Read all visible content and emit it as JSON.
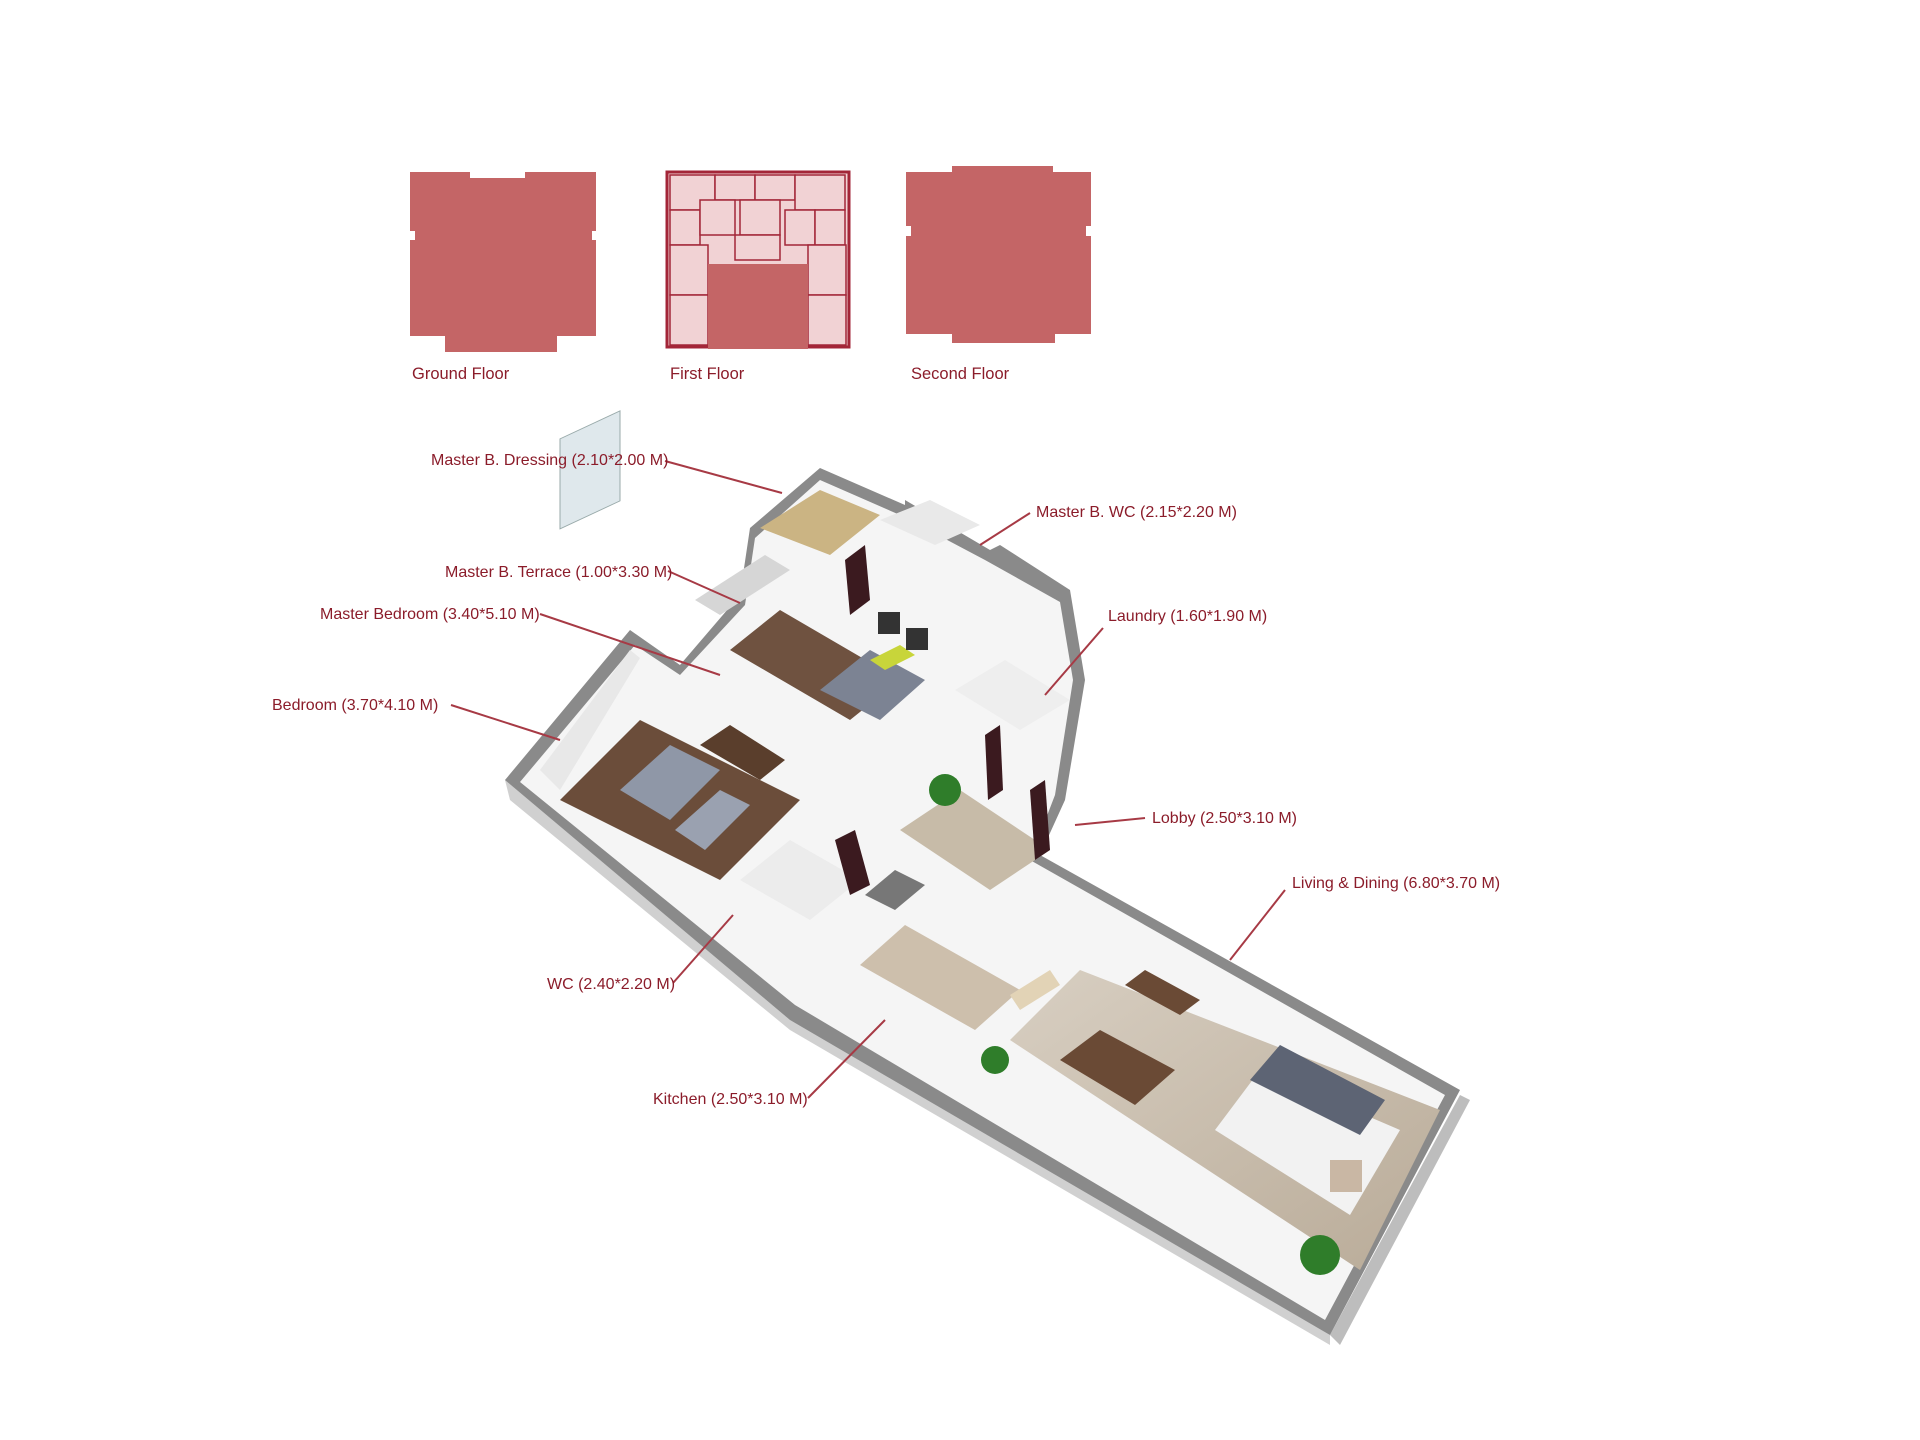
{
  "colors": {
    "floor_fill": "#c46566",
    "floor_outline": "#a32638",
    "floor_light_fill": "#f1d2d4",
    "label_text": "#8b1c2a",
    "leader_line": "#a73a45",
    "wall": "#ededed",
    "wall_side": "#c9c9c9",
    "floor_wood": "#6b4d3a",
    "floor_tile": "#cbbfae"
  },
  "floors": [
    {
      "caption": "Ground Floor",
      "icon": "floor-silhouette-solid"
    },
    {
      "caption": "First Floor",
      "icon": "floor-plan-detailed"
    },
    {
      "caption": "Second Floor",
      "icon": "floor-silhouette-solid"
    }
  ],
  "rooms": [
    {
      "label": "Master B. Dressing (2.10*2.00 M)"
    },
    {
      "label": "Master B. WC (2.15*2.20 M)"
    },
    {
      "label": "Master B. Terrace (1.00*3.30 M)"
    },
    {
      "label": "Master Bedroom (3.40*5.10 M)"
    },
    {
      "label": "Laundry (1.60*1.90 M)"
    },
    {
      "label": "Bedroom (3.70*4.10 M)"
    },
    {
      "label": "Lobby (2.50*3.10 M)"
    },
    {
      "label": "Living & Dining (6.80*3.70 M)"
    },
    {
      "label": "WC (2.40*2.20 M)"
    },
    {
      "label": "Kitchen (2.50*3.10 M)"
    }
  ]
}
